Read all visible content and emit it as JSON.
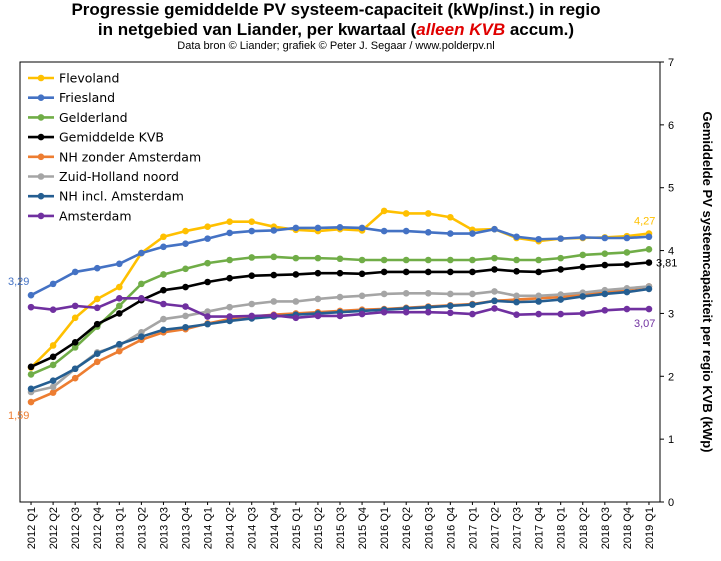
{
  "header": {
    "title_line1": "Progressie gemiddelde PV systeem-capaciteit (kWp/inst.) in regio",
    "title_line2_pre": "in netgebied van Liander, per kwartaal (",
    "title_line2_hl": "alleen KVB",
    "title_line2_post": " accum.)",
    "subtitle": "Data bron © Liander; grafiek © Peter J. Segaar / www.polderpv.nl"
  },
  "chart_data": {
    "type": "line",
    "title": "Progressie gemiddelde PV systeem-capaciteit (kWp/inst.) in regio in netgebied van Liander, per kwartaal (alleen KVB accum.)",
    "ylabel": "Gemiddelde PV systeemcapaciteit per regio KVB (kWp)",
    "ylim": [
      0,
      7
    ],
    "yticks": [
      "0",
      "1",
      "2",
      "3",
      "4",
      "5",
      "6",
      "7"
    ],
    "grid": false,
    "legend_position": "top-left",
    "categories": [
      "2012 Q1",
      "2012 Q2",
      "2012 Q3",
      "2012 Q4",
      "2013 Q1",
      "2013 Q2",
      "2013 Q3",
      "2013 Q4",
      "2014 Q1",
      "2014 Q2",
      "2014 Q3",
      "2014 Q4",
      "2015 Q1",
      "2015 Q2",
      "2015 Q3",
      "2015 Q4",
      "2016 Q1",
      "2016 Q2",
      "2016 Q3",
      "2016 Q4",
      "2017 Q1",
      "2017 Q2",
      "2017 Q3",
      "2017 Q4",
      "2018 Q1",
      "2018 Q2",
      "2018 Q3",
      "2018 Q4",
      "2019 Q1"
    ],
    "series": [
      {
        "name": "Flevoland",
        "color": "#ffc000",
        "values": [
          2.14,
          2.49,
          2.93,
          3.23,
          3.42,
          3.96,
          4.22,
          4.31,
          4.38,
          4.46,
          4.46,
          4.38,
          4.33,
          4.31,
          4.34,
          4.32,
          4.63,
          4.59,
          4.59,
          4.53,
          4.33,
          4.34,
          4.2,
          4.15,
          4.19,
          4.2,
          4.21,
          4.23,
          4.27
        ]
      },
      {
        "name": "Friesland",
        "color": "#4472c4",
        "values": [
          3.29,
          3.47,
          3.66,
          3.72,
          3.79,
          3.96,
          4.06,
          4.11,
          4.19,
          4.28,
          4.31,
          4.32,
          4.36,
          4.36,
          4.37,
          4.36,
          4.31,
          4.31,
          4.29,
          4.27,
          4.27,
          4.34,
          4.22,
          4.18,
          4.19,
          4.21,
          4.2,
          4.2,
          4.22
        ]
      },
      {
        "name": "Gelderland",
        "color": "#70ad47",
        "values": [
          2.03,
          2.18,
          2.46,
          2.79,
          3.12,
          3.47,
          3.62,
          3.71,
          3.8,
          3.85,
          3.89,
          3.9,
          3.88,
          3.88,
          3.87,
          3.85,
          3.85,
          3.85,
          3.85,
          3.85,
          3.85,
          3.88,
          3.85,
          3.85,
          3.88,
          3.93,
          3.95,
          3.97,
          4.02
        ]
      },
      {
        "name": "Gemiddelde KVB",
        "color": "#000000",
        "values": [
          2.15,
          2.31,
          2.54,
          2.83,
          3.0,
          3.21,
          3.37,
          3.42,
          3.5,
          3.56,
          3.6,
          3.61,
          3.62,
          3.64,
          3.64,
          3.63,
          3.66,
          3.66,
          3.66,
          3.66,
          3.66,
          3.7,
          3.67,
          3.66,
          3.7,
          3.74,
          3.77,
          3.78,
          3.81
        ]
      },
      {
        "name": "NH zonder Amsterdam",
        "color": "#ed7d31",
        "values": [
          1.59,
          1.74,
          1.97,
          2.23,
          2.4,
          2.58,
          2.7,
          2.75,
          2.84,
          2.91,
          2.95,
          2.98,
          3.0,
          3.02,
          3.04,
          3.06,
          3.07,
          3.09,
          3.11,
          3.13,
          3.15,
          3.2,
          3.22,
          3.24,
          3.26,
          3.3,
          3.34,
          3.38,
          3.43
        ]
      },
      {
        "name": "Zuid-Holland noord",
        "color": "#a5a5a5",
        "values": [
          1.75,
          1.83,
          2.12,
          2.38,
          2.49,
          2.7,
          2.91,
          2.96,
          3.03,
          3.1,
          3.15,
          3.19,
          3.19,
          3.23,
          3.26,
          3.28,
          3.31,
          3.32,
          3.32,
          3.31,
          3.31,
          3.35,
          3.28,
          3.28,
          3.3,
          3.33,
          3.37,
          3.4,
          3.43
        ]
      },
      {
        "name": "NH incl. Amsterdam",
        "color": "#255e91",
        "values": [
          1.8,
          1.93,
          2.12,
          2.36,
          2.51,
          2.63,
          2.74,
          2.78,
          2.83,
          2.88,
          2.92,
          2.95,
          2.98,
          3.0,
          3.02,
          3.04,
          3.06,
          3.08,
          3.1,
          3.12,
          3.14,
          3.2,
          3.18,
          3.19,
          3.22,
          3.27,
          3.31,
          3.34,
          3.39
        ]
      },
      {
        "name": "Amsterdam",
        "color": "#7030a0",
        "values": [
          3.1,
          3.06,
          3.12,
          3.09,
          3.24,
          3.24,
          3.15,
          3.11,
          2.95,
          2.95,
          2.96,
          2.97,
          2.93,
          2.96,
          2.96,
          2.99,
          3.02,
          3.02,
          3.02,
          3.01,
          2.99,
          3.08,
          2.98,
          2.99,
          2.99,
          3.0,
          3.05,
          3.07,
          3.07
        ]
      }
    ],
    "annotations": [
      {
        "text": "3,29",
        "series": "Friesland",
        "index": 0,
        "side": "left"
      },
      {
        "text": "1,59",
        "series": "NH zonder Amsterdam",
        "index": 0,
        "side": "left"
      },
      {
        "text": "4,27",
        "series": "Flevoland",
        "index": 28,
        "side": "right-above"
      },
      {
        "text": "3,81",
        "series": "Gemiddelde KVB",
        "index": 28,
        "side": "right"
      },
      {
        "text": "3,07",
        "series": "Amsterdam",
        "index": 28,
        "side": "right-below"
      }
    ]
  }
}
